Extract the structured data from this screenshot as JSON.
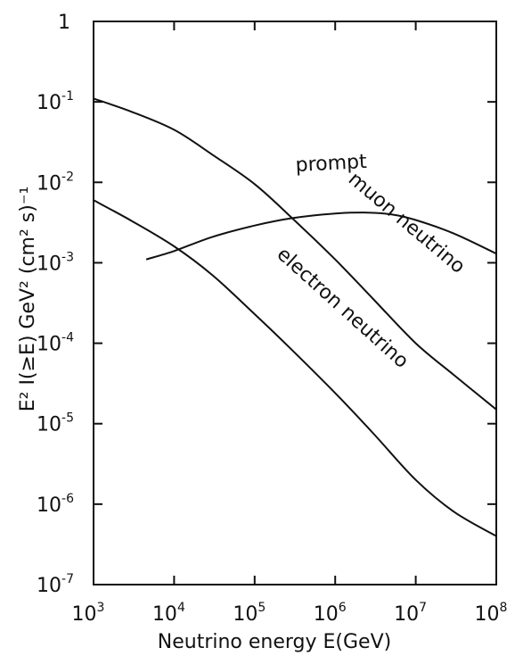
{
  "chart_data": {
    "type": "line",
    "title": "",
    "xlabel": "Neutrino energy E(GeV)",
    "ylabel": "E² I(≥E) GeV² (cm² s)⁻¹",
    "xscale": "log",
    "yscale": "log",
    "xlim": [
      1000,
      100000000
    ],
    "ylim": [
      1e-07,
      1
    ],
    "grid": false,
    "legend": "none",
    "x_ticks": [
      {
        "value": 1000,
        "base": "10",
        "exp": "3"
      },
      {
        "value": 10000,
        "base": "10",
        "exp": "4"
      },
      {
        "value": 100000,
        "base": "10",
        "exp": "5"
      },
      {
        "value": 1000000,
        "base": "10",
        "exp": "6"
      },
      {
        "value": 10000000,
        "base": "10",
        "exp": "7"
      },
      {
        "value": 100000000,
        "base": "10",
        "exp": "8"
      }
    ],
    "y_ticks": [
      {
        "value": 1,
        "base": "1",
        "exp": ""
      },
      {
        "value": 0.1,
        "base": "10",
        "exp": "-1"
      },
      {
        "value": 0.01,
        "base": "10",
        "exp": "-2"
      },
      {
        "value": 0.001,
        "base": "10",
        "exp": "-3"
      },
      {
        "value": 0.0001,
        "base": "10",
        "exp": "-4"
      },
      {
        "value": 1e-05,
        "base": "10",
        "exp": "-5"
      },
      {
        "value": 1e-06,
        "base": "10",
        "exp": "-6"
      },
      {
        "value": 1e-07,
        "base": "10",
        "exp": "-7"
      }
    ],
    "series": [
      {
        "name": "muon neutrino",
        "x": [
          1000,
          3000,
          10000,
          30000,
          100000,
          300000,
          1000000,
          3000000,
          10000000,
          30000000,
          100000000
        ],
        "y": [
          0.11,
          0.075,
          0.045,
          0.022,
          0.0095,
          0.0035,
          0.0011,
          0.00035,
          0.0001,
          4e-05,
          1.5e-05
        ]
      },
      {
        "name": "electron neutrino",
        "x": [
          1000,
          3000,
          10000,
          30000,
          100000,
          300000,
          1000000,
          3000000,
          10000000,
          30000000,
          100000000
        ],
        "y": [
          0.006,
          0.0033,
          0.0016,
          0.0007,
          0.00023,
          8e-05,
          2.4e-05,
          7.5e-06,
          2e-06,
          8e-07,
          4e-07
        ]
      },
      {
        "name": "prompt",
        "x": [
          4500,
          10000,
          30000,
          100000,
          300000,
          1000000,
          2500000,
          5000000,
          10000000,
          30000000,
          100000000
        ],
        "y": [
          0.0011,
          0.0014,
          0.0021,
          0.0029,
          0.0036,
          0.0041,
          0.0042,
          0.004,
          0.0034,
          0.0023,
          0.0013
        ]
      }
    ],
    "annotations": [
      {
        "text": "prompt",
        "series": "prompt"
      },
      {
        "text": "muon neutrino",
        "series": "muon neutrino"
      },
      {
        "text": "electron neutrino",
        "series": "electron neutrino"
      }
    ]
  }
}
